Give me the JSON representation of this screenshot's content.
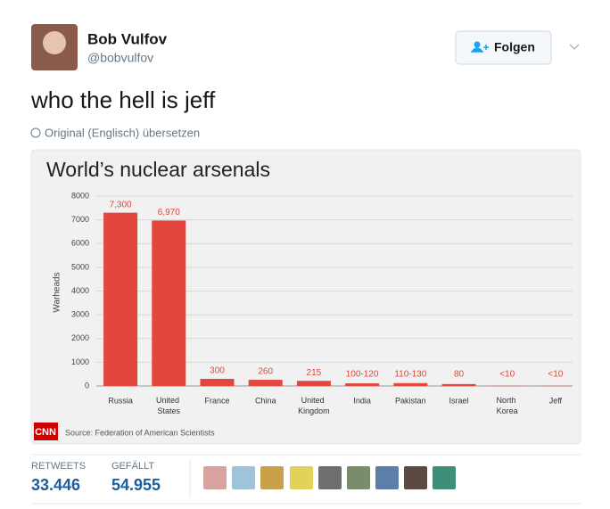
{
  "tweet": {
    "name": "Bob Vulfov",
    "handle": "@bobvulfov",
    "follow_button": "Folgen",
    "text": "who the hell is jeff",
    "translate": "Original (Englisch) übersetzen",
    "retweets_label": "RETWEETS",
    "retweets": "33.446",
    "likes_label": "GEFÄLLT",
    "likes": "54.955"
  },
  "chart_data": {
    "type": "bar",
    "title": "World’s nuclear arsenals",
    "y_label": "Warheads",
    "source": "Source: Federation of American Scientists",
    "logo": "CNN",
    "categories": [
      "Russia",
      "United States",
      "France",
      "China",
      "United Kingdom",
      "India",
      "Pakistan",
      "Israel",
      "North Korea",
      "Jeff"
    ],
    "values": [
      7300,
      6970,
      300,
      260,
      215,
      110,
      120,
      80,
      9,
      9
    ],
    "value_labels": [
      "7,300",
      "6,970",
      "300",
      "260",
      "215",
      "100-120",
      "110-130",
      "80",
      "<10",
      "<10"
    ],
    "color": "#e2463d",
    "ylim": [
      0,
      8000
    ],
    "yticks": [
      0,
      1000,
      2000,
      3000,
      4000,
      5000,
      6000,
      7000,
      8000
    ],
    "grid": true
  }
}
